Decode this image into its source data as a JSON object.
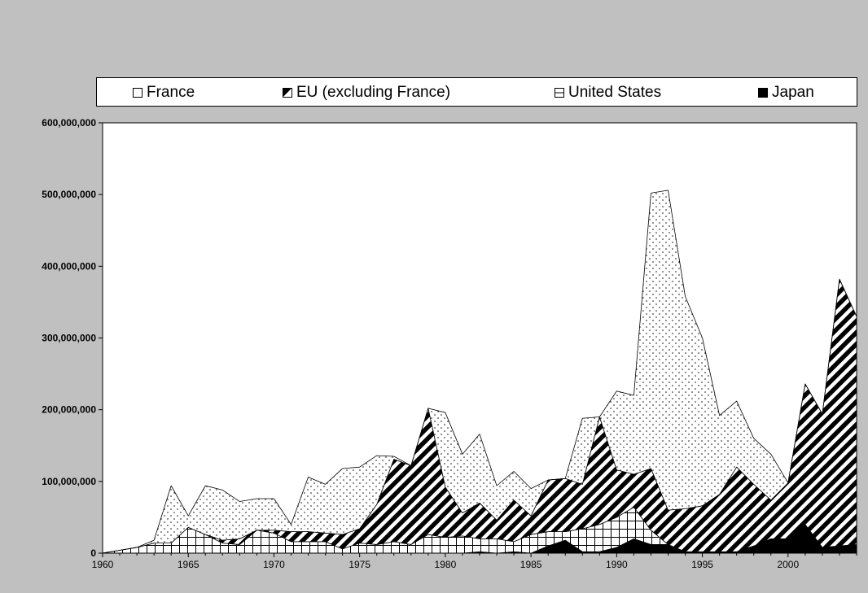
{
  "chart_data": {
    "type": "area",
    "stacked": true,
    "legend_position": "top",
    "gridlines": false,
    "x_axis": {
      "min": 1960,
      "max": 2004,
      "ticks": [
        1960,
        1965,
        1970,
        1975,
        1980,
        1985,
        1990,
        1995,
        2000
      ]
    },
    "y_axis": {
      "min": 0,
      "max": 600000000,
      "ticks": [
        "0",
        "100,000,000",
        "200,000,000",
        "300,000,000",
        "400,000,000",
        "500,000,000",
        "600,000,000"
      ]
    },
    "x": [
      1960,
      1961,
      1962,
      1963,
      1964,
      1965,
      1966,
      1967,
      1968,
      1969,
      1970,
      1971,
      1972,
      1973,
      1974,
      1975,
      1976,
      1977,
      1978,
      1979,
      1980,
      1981,
      1982,
      1983,
      1984,
      1985,
      1986,
      1987,
      1988,
      1989,
      1990,
      1991,
      1992,
      1993,
      1994,
      1995,
      1996,
      1997,
      1998,
      1999,
      2000,
      2001,
      2002,
      2003,
      2004
    ],
    "series": [
      {
        "name": "Japan",
        "pattern": "solid-black",
        "values": [
          0,
          0,
          0,
          0,
          0,
          0,
          0,
          0,
          0,
          0,
          0,
          0,
          0,
          0,
          0,
          0,
          0,
          0,
          0,
          0,
          0,
          0,
          2000000,
          0,
          2000000,
          0,
          10000000,
          18000000,
          2000000,
          2000000,
          8000000,
          20000000,
          12000000,
          12000000,
          2000000,
          2000000,
          2000000,
          2000000,
          10000000,
          20000000,
          20000000,
          40000000,
          8000000,
          10000000,
          12000000
        ]
      },
      {
        "name": "United States",
        "pattern": "grid",
        "values": [
          0,
          4000000,
          8000000,
          14000000,
          14000000,
          36000000,
          26000000,
          14000000,
          12000000,
          32000000,
          28000000,
          16000000,
          16000000,
          16000000,
          6000000,
          14000000,
          12000000,
          16000000,
          12000000,
          26000000,
          22000000,
          24000000,
          18000000,
          20000000,
          14000000,
          26000000,
          20000000,
          12000000,
          32000000,
          38000000,
          42000000,
          44000000,
          20000000,
          0,
          0,
          0,
          0,
          0,
          0,
          0,
          0,
          0,
          0,
          0,
          0
        ]
      },
      {
        "name": "EU (excluding France)",
        "pattern": "diagonal-stripes",
        "values": [
          0,
          0,
          0,
          0,
          0,
          0,
          0,
          4000000,
          8000000,
          0,
          4000000,
          14000000,
          14000000,
          12000000,
          20000000,
          20000000,
          56000000,
          115000000,
          110000000,
          176000000,
          70000000,
          32000000,
          50000000,
          26000000,
          58000000,
          26000000,
          72000000,
          74000000,
          62000000,
          150000000,
          66000000,
          46000000,
          86000000,
          48000000,
          60000000,
          64000000,
          80000000,
          118000000,
          86000000,
          54000000,
          78000000,
          196000000,
          186000000,
          372000000,
          318000000
        ]
      },
      {
        "name": "France",
        "pattern": "white-dotted",
        "values": [
          0,
          0,
          0,
          4000000,
          80000000,
          16000000,
          68000000,
          70000000,
          52000000,
          44000000,
          44000000,
          10000000,
          76000000,
          68000000,
          92000000,
          86000000,
          68000000,
          4000000,
          0,
          0,
          104000000,
          82000000,
          96000000,
          48000000,
          40000000,
          38000000,
          0,
          0,
          92000000,
          0,
          110000000,
          110000000,
          384000000,
          446000000,
          296000000,
          234000000,
          110000000,
          92000000,
          64000000,
          64000000,
          0,
          0,
          0,
          0,
          0
        ]
      }
    ],
    "legend_order": [
      "France",
      "EU (excluding France)",
      "United States",
      "Japan"
    ]
  }
}
